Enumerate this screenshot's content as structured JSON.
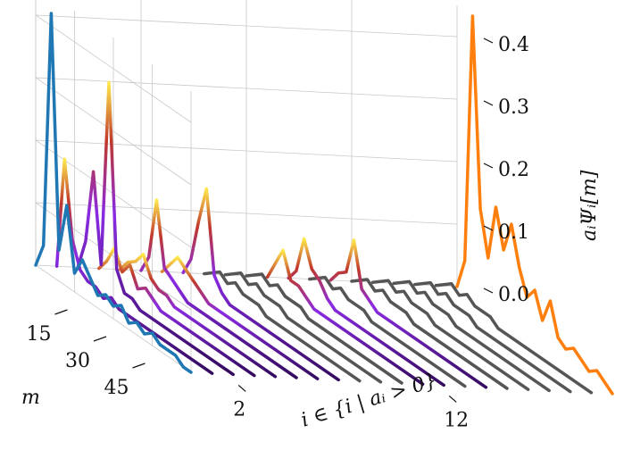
{
  "chart_data": {
    "type": "line",
    "projection": "3d-waterfall",
    "title": "",
    "xlabel": "m",
    "ylabel": "i ∈ {i | aᵢ > 0}",
    "zlabel": "aᵢΨᵢ[m]",
    "m_ticks": [
      "15",
      "30",
      "45"
    ],
    "i_ticks": [
      "2",
      "12"
    ],
    "z_ticks": [
      "0.0",
      "0.1",
      "0.2",
      "0.3",
      "0.4"
    ],
    "zlim": [
      0,
      0.45
    ],
    "grid": true,
    "legend": "none",
    "colors": {
      "left_series": "#1f77b4",
      "right_series": "#ff7f0e",
      "flat_series": "#555555",
      "heat_low": "#330a5f",
      "heat_mid": "#8a2be2",
      "heat_high": "#ffe94d"
    },
    "m_points": [
      0,
      3,
      6,
      9,
      12,
      15,
      18,
      21,
      24,
      27,
      30,
      33,
      36,
      39,
      42,
      45,
      48,
      51,
      54,
      57,
      60
    ],
    "series": [
      {
        "i": 0,
        "style": "left",
        "values": [
          0.0,
          0.04,
          0.42,
          0.05,
          0.13,
          0.03,
          0.06,
          0.04,
          0.02,
          0.03,
          0.02,
          0.03,
          0.01,
          0.02,
          0.01,
          0.02,
          0.01,
          0.01,
          0.01,
          0.0,
          0.0
        ]
      },
      {
        "i": 1,
        "style": "heat",
        "values": [
          0.0,
          0.18,
          0.06,
          0.02,
          0.01,
          0.01,
          0.0,
          0.01,
          0.0,
          0.0,
          0.0,
          0.0,
          0.0,
          0.0,
          0.0,
          0.0,
          0.0,
          0.0,
          0.0,
          0.0,
          0.0
        ]
      },
      {
        "i": 2,
        "style": "heat",
        "values": [
          0.0,
          0.05,
          0.17,
          0.03,
          0.33,
          0.04,
          0.01,
          0.01,
          0.0,
          0.0,
          0.0,
          0.0,
          0.0,
          0.0,
          0.0,
          0.0,
          0.0,
          0.0,
          0.0,
          0.0,
          0.0
        ]
      },
      {
        "i": 3,
        "style": "heat",
        "values": [
          0.0,
          0.02,
          0.05,
          0.02,
          0.04,
          0.01,
          0.02,
          0.01,
          0.0,
          0.0,
          0.0,
          0.0,
          0.0,
          0.0,
          0.0,
          0.0,
          0.0,
          0.0,
          0.0,
          0.0,
          0.0
        ]
      },
      {
        "i": 4,
        "style": "heat",
        "values": [
          0.0,
          0.02,
          0.03,
          0.05,
          0.02,
          0.01,
          0.01,
          0.0,
          0.0,
          0.0,
          0.0,
          0.0,
          0.0,
          0.0,
          0.0,
          0.0,
          0.0,
          0.0,
          0.0,
          0.0,
          0.0
        ]
      },
      {
        "i": 5,
        "style": "heat",
        "values": [
          0.0,
          0.03,
          0.13,
          0.03,
          0.02,
          0.01,
          0.0,
          0.0,
          0.0,
          0.0,
          0.0,
          0.0,
          0.0,
          0.0,
          0.0,
          0.0,
          0.0,
          0.0,
          0.0,
          0.0,
          0.0
        ]
      },
      {
        "i": 6,
        "style": "heat",
        "values": [
          0.0,
          0.02,
          0.04,
          0.03,
          0.02,
          0.01,
          0.0,
          0.0,
          0.0,
          0.0,
          0.0,
          0.0,
          0.0,
          0.0,
          0.0,
          0.0,
          0.0,
          0.0,
          0.0,
          0.0,
          0.0
        ]
      },
      {
        "i": 7,
        "style": "heat",
        "values": [
          0.0,
          0.03,
          0.1,
          0.16,
          0.03,
          0.01,
          0.0,
          0.0,
          0.0,
          0.0,
          0.0,
          0.0,
          0.0,
          0.0,
          0.0,
          0.0,
          0.0,
          0.0,
          0.0,
          0.0,
          0.0
        ]
      },
      {
        "i": 8,
        "style": "flat",
        "values": [
          0.0,
          0.01,
          0.02,
          0.01,
          0.02,
          0.01,
          0.01,
          0.01,
          0.0,
          0.0,
          0.0,
          0.0,
          0.0,
          0.0,
          0.0,
          0.0,
          0.0,
          0.0,
          0.0,
          0.0,
          0.0
        ]
      },
      {
        "i": 9,
        "style": "flat",
        "values": [
          0.0,
          0.01,
          0.02,
          0.01,
          0.02,
          0.01,
          0.01,
          0.01,
          0.0,
          0.0,
          0.0,
          0.0,
          0.0,
          0.0,
          0.0,
          0.0,
          0.0,
          0.0,
          0.0,
          0.0,
          0.0
        ]
      },
      {
        "i": 10,
        "style": "flat",
        "values": [
          0.0,
          0.01,
          0.02,
          0.01,
          0.02,
          0.01,
          0.01,
          0.01,
          0.0,
          0.0,
          0.0,
          0.0,
          0.0,
          0.0,
          0.0,
          0.0,
          0.0,
          0.0,
          0.0,
          0.0,
          0.0
        ]
      },
      {
        "i": 11,
        "style": "heat",
        "values": [
          0.0,
          0.03,
          0.06,
          0.02,
          0.02,
          0.01,
          0.0,
          0.0,
          0.0,
          0.0,
          0.0,
          0.0,
          0.0,
          0.0,
          0.0,
          0.0,
          0.0,
          0.0,
          0.0,
          0.0,
          0.0
        ]
      },
      {
        "i": 12,
        "style": "heat",
        "values": [
          0.0,
          0.02,
          0.08,
          0.04,
          0.03,
          0.01,
          0.0,
          0.0,
          0.0,
          0.0,
          0.0,
          0.0,
          0.0,
          0.0,
          0.0,
          0.0,
          0.0,
          0.0,
          0.0,
          0.0,
          0.0
        ]
      },
      {
        "i": 13,
        "style": "flat",
        "values": [
          0.0,
          0.01,
          0.02,
          0.01,
          0.02,
          0.01,
          0.01,
          0.01,
          0.0,
          0.0,
          0.0,
          0.0,
          0.0,
          0.0,
          0.0,
          0.0,
          0.0,
          0.0,
          0.0,
          0.0,
          0.0
        ]
      },
      {
        "i": 14,
        "style": "heat",
        "values": [
          0.0,
          0.02,
          0.03,
          0.09,
          0.02,
          0.01,
          0.0,
          0.0,
          0.0,
          0.0,
          0.0,
          0.0,
          0.0,
          0.0,
          0.0,
          0.0,
          0.0,
          0.0,
          0.0,
          0.0,
          0.0
        ]
      },
      {
        "i": 15,
        "style": "flat",
        "values": [
          0.0,
          0.01,
          0.02,
          0.01,
          0.02,
          0.01,
          0.01,
          0.01,
          0.0,
          0.0,
          0.0,
          0.0,
          0.0,
          0.0,
          0.0,
          0.0,
          0.0,
          0.0,
          0.0,
          0.0,
          0.0
        ]
      },
      {
        "i": 16,
        "style": "flat",
        "values": [
          0.0,
          0.01,
          0.02,
          0.01,
          0.02,
          0.01,
          0.01,
          0.01,
          0.0,
          0.0,
          0.0,
          0.0,
          0.0,
          0.0,
          0.0,
          0.0,
          0.0,
          0.0,
          0.0,
          0.0,
          0.0
        ]
      },
      {
        "i": 17,
        "style": "flat",
        "values": [
          0.0,
          0.01,
          0.02,
          0.01,
          0.02,
          0.01,
          0.01,
          0.01,
          0.0,
          0.0,
          0.0,
          0.0,
          0.0,
          0.0,
          0.0,
          0.0,
          0.0,
          0.0,
          0.0,
          0.0,
          0.0
        ]
      },
      {
        "i": 18,
        "style": "flat",
        "values": [
          0.0,
          0.01,
          0.02,
          0.01,
          0.02,
          0.01,
          0.01,
          0.01,
          0.0,
          0.0,
          0.0,
          0.0,
          0.0,
          0.0,
          0.0,
          0.0,
          0.0,
          0.0,
          0.0,
          0.0,
          0.0
        ]
      },
      {
        "i": 19,
        "style": "flat",
        "values": [
          0.0,
          0.01,
          0.02,
          0.01,
          0.02,
          0.01,
          0.01,
          0.01,
          0.0,
          0.0,
          0.0,
          0.0,
          0.0,
          0.0,
          0.0,
          0.0,
          0.0,
          0.0,
          0.0,
          0.0,
          0.0
        ]
      },
      {
        "i": 20,
        "style": "right",
        "values": [
          0.0,
          0.05,
          0.45,
          0.15,
          0.08,
          0.17,
          0.11,
          0.16,
          0.1,
          0.06,
          0.08,
          0.04,
          0.08,
          0.03,
          0.02,
          0.03,
          0.02,
          0.01,
          0.02,
          0.01,
          0.0
        ]
      }
    ]
  }
}
